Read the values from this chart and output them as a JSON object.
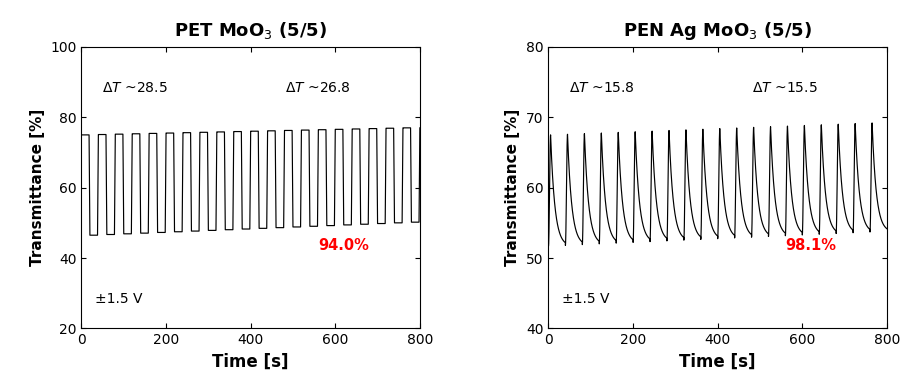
{
  "panel1": {
    "title": "PET MoO$_3$ (5/5)",
    "xlabel": "Time [s]",
    "ylabel": "Transmittance [%]",
    "xlim": [
      0,
      800
    ],
    "ylim": [
      20,
      100
    ],
    "yticks": [
      20,
      40,
      60,
      80,
      100
    ],
    "xticks": [
      0,
      200,
      400,
      600,
      800
    ],
    "annotation_left": "$\\Delta T$ ~28.5",
    "annotation_right": "$\\Delta T$ ~26.8",
    "annotation_pct": "94.0%",
    "annotation_voltage": "±1.5 V",
    "n_cycles": 20,
    "period": 40,
    "high_start": 75.0,
    "high_end": 77.0,
    "low_start": 46.5,
    "low_end": 50.2,
    "rise_time": 2,
    "fall_time": 2
  },
  "panel2": {
    "title": "PEN Ag MoO$_3$ (5/5)",
    "xlabel": "Time [s]",
    "ylabel": "Transmittance [%]",
    "xlim": [
      0,
      800
    ],
    "ylim": [
      40,
      80
    ],
    "yticks": [
      40,
      50,
      60,
      70,
      80
    ],
    "xticks": [
      0,
      200,
      400,
      600,
      800
    ],
    "annotation_left": "$\\Delta T$ ~15.8",
    "annotation_right": "$\\Delta T$ ~15.5",
    "annotation_pct": "98.1%",
    "annotation_voltage": "±1.5 V",
    "n_cycles": 20,
    "period": 40,
    "high_start": 67.5,
    "high_end": 69.2,
    "low_start": 51.7,
    "low_end": 53.7,
    "rise_time": 5,
    "fall_time": 15
  }
}
